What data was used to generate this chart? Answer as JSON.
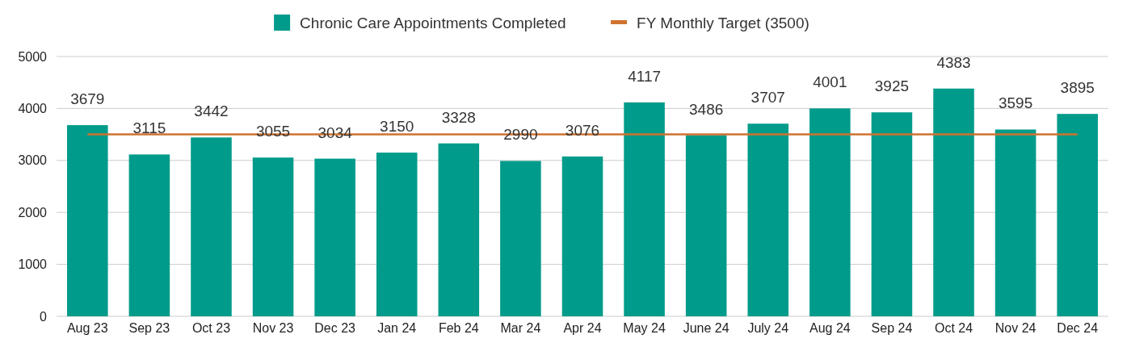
{
  "chart_data": {
    "type": "bar",
    "categories": [
      "Aug 23",
      "Sep 23",
      "Oct 23",
      "Nov 23",
      "Dec 23",
      "Jan 24",
      "Feb 24",
      "Mar 24",
      "Apr 24",
      "May 24",
      "June 24",
      "July 24",
      "Aug 24",
      "Sep 24",
      "Oct 24",
      "Nov 24",
      "Dec 24"
    ],
    "series": [
      {
        "name": "Chronic Care Appointments Completed",
        "color": "#009b8a",
        "values": [
          3679,
          3115,
          3442,
          3055,
          3034,
          3150,
          3328,
          2990,
          3076,
          4117,
          3486,
          3707,
          4001,
          3925,
          4383,
          3595,
          3895
        ],
        "value_labels": [
          "3679",
          "3115",
          "3442",
          "3055",
          "3034",
          "3150",
          "3328",
          "2990",
          "3076",
          "4117",
          "3486",
          "3707",
          "4001",
          "3925",
          "4383",
          "3595",
          "3895"
        ]
      },
      {
        "name": "FY Monthly Target (3500)",
        "type": "line",
        "color": "#d0722f",
        "values": [
          3500,
          3500,
          3500,
          3500,
          3500,
          3500,
          3500,
          3500,
          3500,
          3500,
          3500,
          3500,
          3500,
          3500,
          3500,
          3500,
          3500
        ]
      }
    ],
    "ylim": [
      0,
      5000
    ],
    "yticks": [
      0,
      1000,
      2000,
      3000,
      4000,
      5000
    ],
    "grid": "y",
    "legend": "top",
    "marker": "none",
    "line_style": "solid"
  }
}
